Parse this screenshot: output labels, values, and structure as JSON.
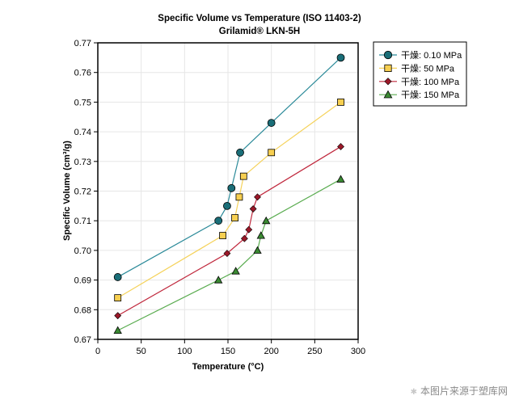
{
  "chart_data": {
    "type": "line",
    "title": "Specific Volume vs Temperature (ISO 11403-2)",
    "subtitle": "Grilamid® LKN-5H",
    "xlabel": "Temperature (°C)",
    "ylabel": "Specific Volume (cm³/g)",
    "xlim": [
      0,
      300
    ],
    "ylim": [
      0.67,
      0.77
    ],
    "xticks": [
      0,
      50,
      100,
      150,
      200,
      250,
      300
    ],
    "yticks": [
      0.67,
      0.68,
      0.69,
      0.7,
      0.71,
      0.72,
      0.73,
      0.74,
      0.75,
      0.76,
      0.77
    ],
    "ytick_labels": [
      "0.67",
      "0.68",
      "0.69",
      "0.70",
      "0.71",
      "0.72",
      "0.73",
      "0.74",
      "0.75",
      "0.76",
      "0.77"
    ],
    "xtick_labels": [
      "0",
      "50",
      "100",
      "150",
      "200",
      "250",
      "300"
    ],
    "grid": true,
    "legend_position": "outside-top-right",
    "series": [
      {
        "name": "干燥: 0.10 MPa",
        "color": "#2b8a99",
        "marker": "circle",
        "marker_fill": "#1a6e78",
        "x": [
          23,
          139,
          149,
          154,
          164,
          200,
          280
        ],
        "y": [
          0.691,
          0.71,
          0.715,
          0.721,
          0.733,
          0.743,
          0.765
        ]
      },
      {
        "name": "干燥: 50 MPa",
        "color": "#f5d25a",
        "marker": "square",
        "marker_fill": "#f7cf50",
        "x": [
          23,
          144,
          158,
          163,
          168,
          200,
          280
        ],
        "y": [
          0.684,
          0.705,
          0.711,
          0.718,
          0.725,
          0.733,
          0.75
        ]
      },
      {
        "name": "干燥: 100 MPa",
        "color": "#c0283d",
        "marker": "diamond",
        "marker_fill": "#9b1828",
        "x": [
          23,
          149,
          169,
          174,
          179,
          184,
          280
        ],
        "y": [
          0.678,
          0.699,
          0.704,
          0.707,
          0.714,
          0.718,
          0.735
        ]
      },
      {
        "name": "干燥: 150 MPa",
        "color": "#5aac50",
        "marker": "triangle",
        "marker_fill": "#3a8a32",
        "x": [
          23,
          139,
          159,
          184,
          188,
          194,
          280
        ],
        "y": [
          0.673,
          0.69,
          0.693,
          0.7,
          0.705,
          0.71,
          0.724
        ]
      }
    ]
  },
  "watermark": {
    "icon": "star-icon",
    "text": "本图片来源于塑库网"
  }
}
